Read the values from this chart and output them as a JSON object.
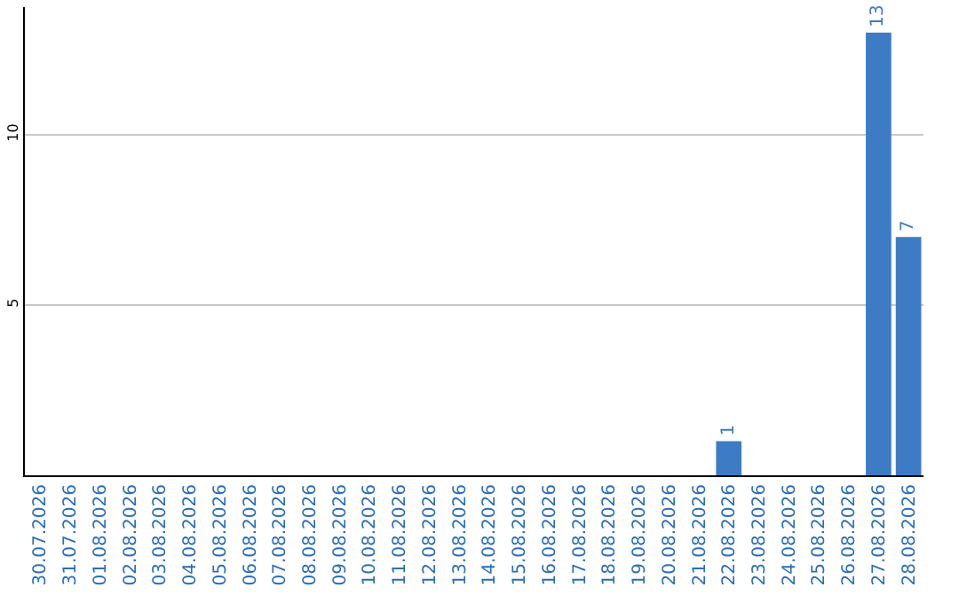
{
  "chart_data": {
    "type": "bar",
    "categories": [
      "30.07.2026",
      "31.07.2026",
      "01.08.2026",
      "02.08.2026",
      "03.08.2026",
      "04.08.2026",
      "05.08.2026",
      "06.08.2026",
      "07.08.2026",
      "08.08.2026",
      "09.08.2026",
      "10.08.2026",
      "11.08.2026",
      "12.08.2026",
      "13.08.2026",
      "14.08.2026",
      "15.08.2026",
      "16.08.2026",
      "17.08.2026",
      "18.08.2026",
      "19.08.2026",
      "20.08.2026",
      "21.08.2026",
      "22.08.2026",
      "23.08.2026",
      "24.08.2026",
      "25.08.2026",
      "26.08.2026",
      "27.08.2026",
      "28.08.2026"
    ],
    "values": [
      0,
      0,
      0,
      0,
      0,
      0,
      0,
      0,
      0,
      0,
      0,
      0,
      0,
      0,
      0,
      0,
      0,
      0,
      0,
      0,
      0,
      0,
      0,
      1,
      0,
      0,
      0,
      0,
      13,
      7
    ],
    "value_labels": [
      null,
      null,
      null,
      null,
      null,
      null,
      null,
      null,
      null,
      null,
      null,
      null,
      null,
      null,
      null,
      null,
      null,
      null,
      null,
      null,
      null,
      null,
      null,
      "1",
      null,
      null,
      null,
      null,
      "13",
      "7"
    ],
    "color": "#3d7cc4",
    "ylim": [
      0,
      13.75
    ],
    "yticks": [
      5,
      10
    ],
    "grid": "y",
    "legend": false
  }
}
